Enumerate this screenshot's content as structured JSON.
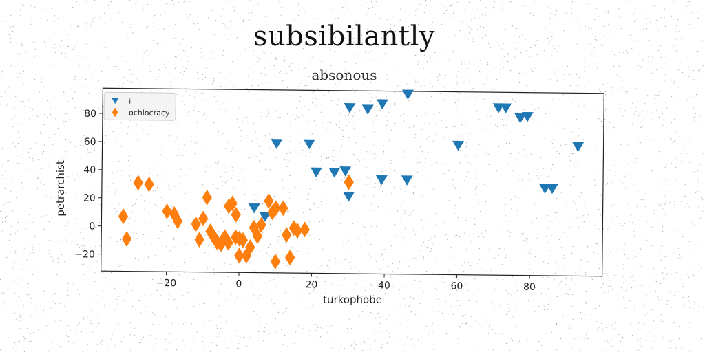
{
  "page": {
    "title": "subsibilantly"
  },
  "chart_data": {
    "type": "scatter",
    "title": "absonous",
    "xlabel": "turkophobe",
    "ylabel": "petrarchist",
    "xlim": [
      -38,
      100
    ],
    "ylim": [
      -32,
      98
    ],
    "xticks": [
      -20,
      0,
      20,
      40,
      60,
      80
    ],
    "yticks": [
      -20,
      0,
      20,
      40,
      60,
      80
    ],
    "grid": false,
    "legend_position": "top-left",
    "series": [
      {
        "name": "i",
        "marker": "triangle-down",
        "color": "#1f77b4",
        "x": [
          46,
          30,
          35,
          39,
          71,
          73,
          77,
          79,
          10,
          19,
          60,
          93,
          21,
          26,
          29,
          39,
          46,
          30,
          84,
          86,
          4,
          7
        ],
        "y": [
          96,
          86,
          85,
          89,
          87,
          87,
          80,
          81,
          60,
          60,
          60,
          60,
          40,
          40,
          41,
          35,
          35,
          23,
          30,
          30,
          14,
          8
        ]
      },
      {
        "name": "ochlocracy",
        "marker": "diamond",
        "color": "#ff7f0e",
        "x": [
          -28,
          -25,
          -32,
          -31,
          -20,
          -18,
          -17,
          -12,
          -10,
          -11,
          -9,
          -8,
          -7,
          -6,
          -5,
          -4,
          -3,
          -2,
          -1,
          0,
          1,
          2,
          3,
          4,
          5,
          6,
          8,
          9,
          10,
          12,
          13,
          15,
          16,
          18,
          30,
          -3,
          -1,
          0,
          10,
          14
        ],
        "y": [
          31,
          30,
          7,
          -9,
          11,
          9,
          4,
          2,
          6,
          -9,
          21,
          -3,
          -7,
          -11,
          -12,
          -7,
          15,
          17,
          9,
          -8,
          -9,
          -20,
          -14,
          0,
          -6,
          2,
          19,
          11,
          14,
          14,
          -5,
          0,
          -2,
          -1,
          33,
          -11,
          -7,
          -20,
          -24,
          -21
        ]
      }
    ]
  }
}
